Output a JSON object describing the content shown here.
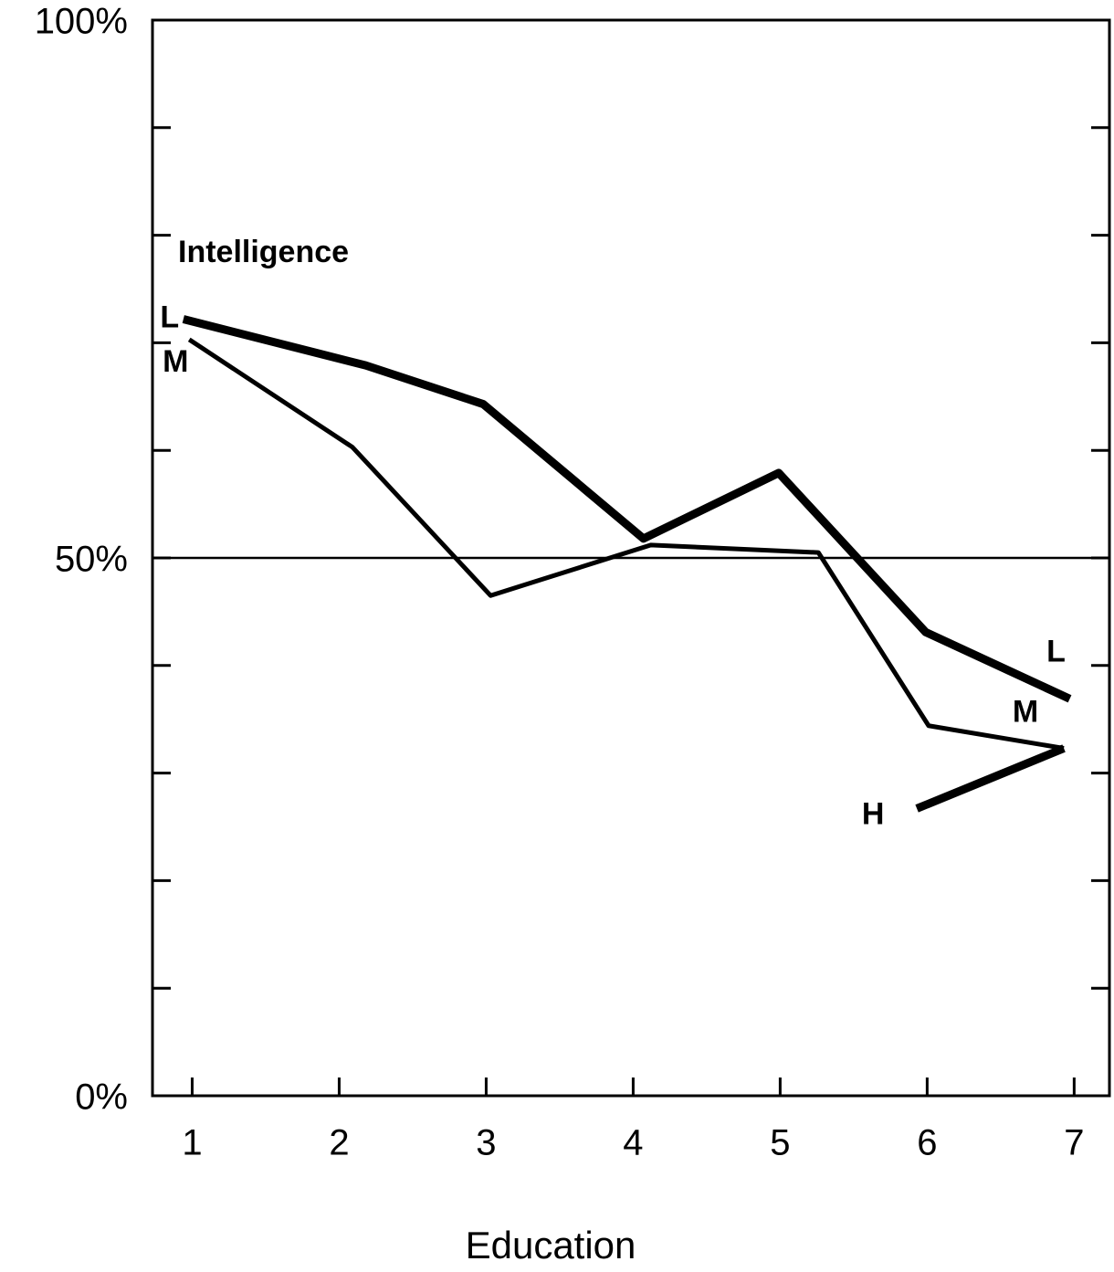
{
  "chart_data": {
    "type": "line",
    "legend_title": "Intelligence",
    "xlabel": "Education",
    "xlim": [
      0.73,
      7.24
    ],
    "xticks": [
      1,
      2,
      3,
      4,
      5,
      6,
      7
    ],
    "ylim": [
      0,
      100
    ],
    "yticks": [
      {
        "value": 0,
        "label": "0%"
      },
      {
        "value": 50,
        "label": "50%"
      },
      {
        "value": 100,
        "label": "100%"
      }
    ],
    "minor_yticks": [
      10,
      20,
      30,
      40,
      60,
      70,
      80,
      90
    ],
    "hline": 50,
    "series": [
      {
        "name": "L",
        "color": "#000000",
        "width": 9,
        "x": [
          0.94,
          2.18,
          2.98,
          4.07,
          4.99,
          5.99,
          6.97
        ],
        "values": [
          72.2,
          67.9,
          64.3,
          51.8,
          57.9,
          43.1,
          36.9
        ]
      },
      {
        "name": "M",
        "color": "#000000",
        "width": 5,
        "x": [
          0.98,
          2.09,
          3.03,
          4.12,
          5.26,
          6.01,
          6.93
        ],
        "values": [
          70.3,
          60.3,
          46.5,
          51.2,
          50.5,
          34.4,
          32.3
        ]
      },
      {
        "name": "H",
        "color": "#000000",
        "width": 9,
        "x": [
          5.93,
          6.93
        ],
        "values": [
          26.7,
          32.3
        ]
      }
    ]
  }
}
